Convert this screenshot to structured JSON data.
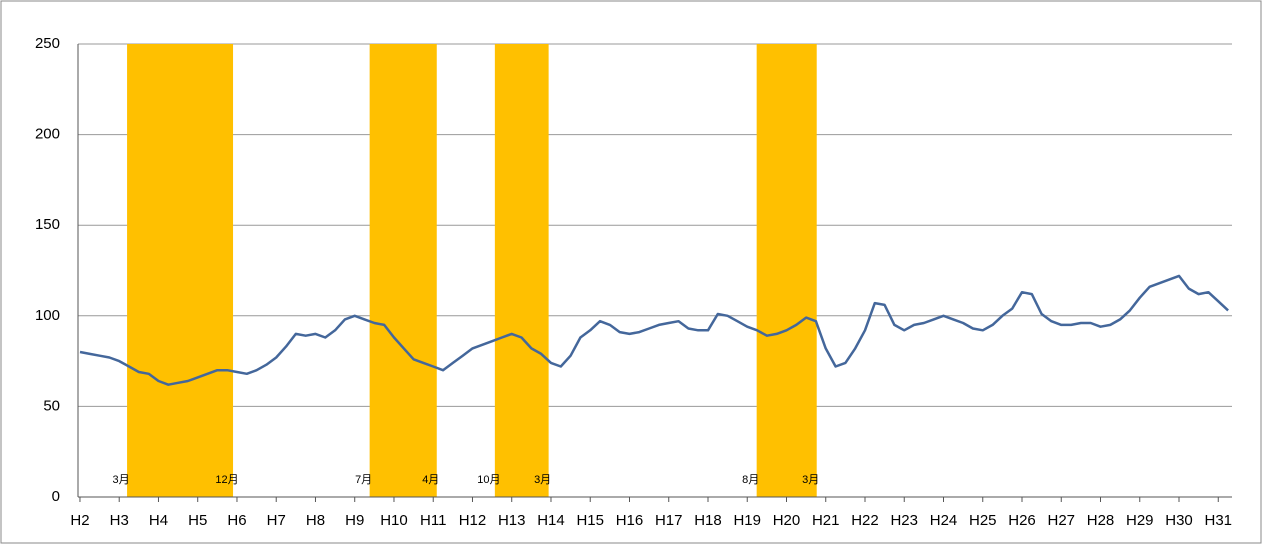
{
  "chart_data": {
    "type": "line",
    "x": [
      2,
      2.25,
      2.5,
      2.75,
      3,
      3.25,
      3.5,
      3.75,
      4,
      4.25,
      4.5,
      4.75,
      5,
      5.25,
      5.5,
      5.75,
      6,
      6.25,
      6.5,
      6.75,
      7,
      7.25,
      7.5,
      7.75,
      8,
      8.25,
      8.5,
      8.75,
      9,
      9.25,
      9.5,
      9.75,
      10,
      10.25,
      10.5,
      10.75,
      11,
      11.25,
      11.5,
      11.75,
      12,
      12.25,
      12.5,
      12.75,
      13,
      13.25,
      13.5,
      13.75,
      14,
      14.25,
      14.5,
      14.75,
      15,
      15.25,
      15.5,
      15.75,
      16,
      16.25,
      16.5,
      16.75,
      17,
      17.25,
      17.5,
      17.75,
      18,
      18.25,
      18.5,
      18.75,
      19,
      19.25,
      19.5,
      19.75,
      20,
      20.25,
      20.5,
      20.75,
      21,
      21.25,
      21.5,
      21.75,
      22,
      22.25,
      22.5,
      22.75,
      23,
      23.25,
      23.5,
      23.75,
      24,
      24.25,
      24.5,
      24.75,
      25,
      25.25,
      25.5,
      25.75,
      26,
      26.25,
      26.5,
      26.75,
      27,
      27.25,
      27.5,
      27.75,
      28,
      28.25,
      28.5,
      28.75,
      29,
      29.25,
      29.5,
      29.75,
      30,
      30.25,
      30.5,
      30.75,
      31,
      31.25
    ],
    "series": [
      {
        "color": "#44679b",
        "values": [
          80,
          79,
          78,
          77,
          75,
          72,
          69,
          68,
          64,
          62,
          63,
          64,
          66,
          68,
          70,
          70,
          69,
          68,
          70,
          73,
          77,
          83,
          90,
          89,
          90,
          88,
          92,
          98,
          100,
          98,
          96,
          95,
          88,
          82,
          76,
          74,
          72,
          70,
          74,
          78,
          82,
          84,
          86,
          88,
          90,
          88,
          82,
          79,
          74,
          72,
          78,
          88,
          92,
          97,
          95,
          91,
          90,
          91,
          93,
          95,
          96,
          97,
          93,
          92,
          92,
          101,
          100,
          97,
          94,
          92,
          89,
          90,
          92,
          95,
          99,
          97,
          82,
          72,
          74,
          82,
          92,
          107,
          106,
          95,
          92,
          95,
          96,
          98,
          100,
          98,
          96,
          93,
          92,
          95,
          100,
          104,
          113,
          112,
          101,
          97,
          95,
          95,
          96,
          96,
          94,
          95,
          98,
          103,
          110,
          116,
          118,
          120,
          122,
          115,
          112,
          113,
          108,
          103
        ]
      }
    ],
    "bands": [
      {
        "start": 3.2,
        "end": 5.9,
        "start_label": "3月",
        "end_label": "12月"
      },
      {
        "start": 9.38,
        "end": 11.09,
        "start_label": "7月",
        "end_label": "4月"
      },
      {
        "start": 12.57,
        "end": 13.94,
        "start_label": "10月",
        "end_label": "3月"
      },
      {
        "start": 19.24,
        "end": 20.77,
        "start_label": "8月",
        "end_label": "3月"
      }
    ],
    "band_color": "#ffc000",
    "xlim": [
      1.95,
      31.35
    ],
    "xticks": [
      {
        "value": 2,
        "label": "H2"
      },
      {
        "value": 3,
        "label": "H3"
      },
      {
        "value": 4,
        "label": "H4"
      },
      {
        "value": 5,
        "label": "H5"
      },
      {
        "value": 6,
        "label": "H6"
      },
      {
        "value": 7,
        "label": "H7"
      },
      {
        "value": 8,
        "label": "H8"
      },
      {
        "value": 9,
        "label": "H9"
      },
      {
        "value": 10,
        "label": "H10"
      },
      {
        "value": 11,
        "label": "H11"
      },
      {
        "value": 12,
        "label": "H12"
      },
      {
        "value": 13,
        "label": "H13"
      },
      {
        "value": 14,
        "label": "H14"
      },
      {
        "value": 15,
        "label": "H15"
      },
      {
        "value": 16,
        "label": "H16"
      },
      {
        "value": 17,
        "label": "H17"
      },
      {
        "value": 18,
        "label": "H18"
      },
      {
        "value": 19,
        "label": "H19"
      },
      {
        "value": 20,
        "label": "H20"
      },
      {
        "value": 21,
        "label": "H21"
      },
      {
        "value": 22,
        "label": "H22"
      },
      {
        "value": 23,
        "label": "H23"
      },
      {
        "value": 24,
        "label": "H24"
      },
      {
        "value": 25,
        "label": "H25"
      },
      {
        "value": 26,
        "label": "H26"
      },
      {
        "value": 27,
        "label": "H27"
      },
      {
        "value": 28,
        "label": "H28"
      },
      {
        "value": 29,
        "label": "H29"
      },
      {
        "value": 30,
        "label": "H30"
      },
      {
        "value": 31,
        "label": "H31"
      }
    ],
    "ylim": [
      0,
      250
    ],
    "yticks": [
      0,
      50,
      100,
      150,
      200,
      250
    ],
    "grid": true
  }
}
